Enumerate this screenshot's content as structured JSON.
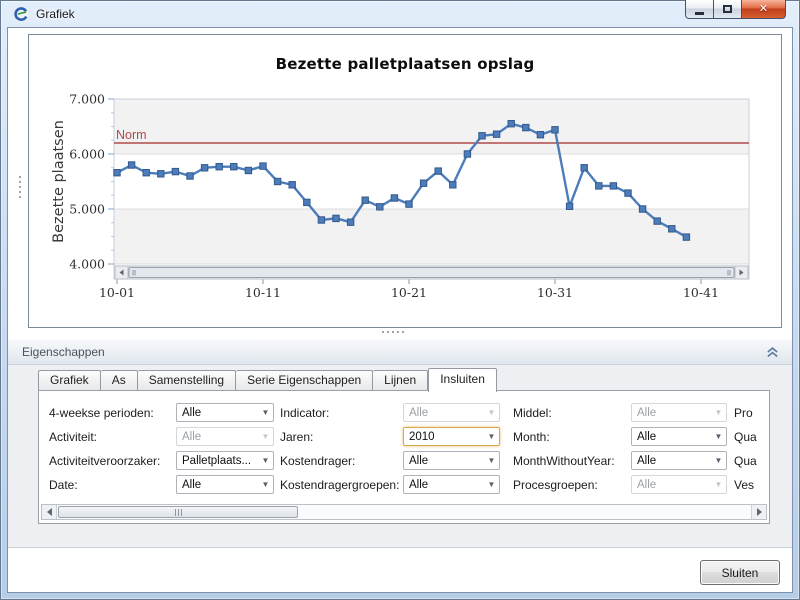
{
  "window": {
    "title": "Grafiek",
    "controls": {
      "minimize": "minimize",
      "maximize": "maximize",
      "close": "close"
    }
  },
  "colors": {
    "series_line": "#4c7cba",
    "series_marker": "#4c7cba",
    "series_marker_border": "#33598c",
    "norm_line": "#b04a4a",
    "gridline": "#dcdcdc",
    "band_fill": "#f2f2f2",
    "plot_border": "#c8d0da",
    "axis_tick": "#7aa6d0",
    "focus_border": "#d9a84d",
    "titlebar_close": "#c84a24"
  },
  "chart_data": {
    "type": "line",
    "title": "Bezette palletplaatsen opslag",
    "ylabel": "Bezette plaatsen",
    "xlabel": "",
    "ylim": [
      4000,
      7000
    ],
    "y_tick_labels": [
      "7.000",
      "6.000",
      "5.000",
      "4.000"
    ],
    "x_tick_labels": [
      "10-01",
      "10-11",
      "10-21",
      "10-31",
      "10-41"
    ],
    "x_tick_positions": [
      1,
      11,
      21,
      31,
      41
    ],
    "grid": "horizontal",
    "interlaced_bands": true,
    "scrollbar": true,
    "legend": "none",
    "norm_line": {
      "label": "Norm",
      "value": 6200
    },
    "series": [
      {
        "name": "Bezette palletplaatsen",
        "start_period": 1,
        "values": [
          5660,
          5800,
          5660,
          5640,
          5680,
          5600,
          5750,
          5770,
          5770,
          5700,
          5780,
          5500,
          5440,
          5120,
          4800,
          4830,
          4760,
          5160,
          5040,
          5200,
          5090,
          5470,
          5690,
          5440,
          6000,
          6330,
          6360,
          6550,
          6480,
          6350,
          6440,
          5050,
          5750,
          5420,
          5420,
          5290,
          5000,
          4780,
          4640,
          4490
        ]
      }
    ]
  },
  "properties": {
    "header": {
      "title": "Eigenschappen",
      "collapse_icon": "chevron-double-up"
    },
    "tabs": [
      {
        "label": "Grafiek",
        "active": false
      },
      {
        "label": "As",
        "active": false
      },
      {
        "label": "Samenstelling",
        "active": false
      },
      {
        "label": "Serie Eigenschappen",
        "active": false
      },
      {
        "label": "Lijnen",
        "active": false
      },
      {
        "label": "Insluiten",
        "active": true
      }
    ],
    "form": {
      "rows": [
        {
          "cells": [
            {
              "label": "4-weekse perioden:",
              "value": "Alle",
              "state": "normal"
            },
            {
              "label": "Indicator:",
              "value": "Alle",
              "state": "disabled"
            },
            {
              "label": "Middel:",
              "value": "Alle",
              "state": "disabled"
            },
            {
              "label": "Pro",
              "value": null,
              "state": "clipped"
            }
          ]
        },
        {
          "cells": [
            {
              "label": "Activiteit:",
              "value": "Alle",
              "state": "disabled"
            },
            {
              "label": "Jaren:",
              "value": "2010",
              "state": "focused"
            },
            {
              "label": "Month:",
              "value": "Alle",
              "state": "normal"
            },
            {
              "label": "Qua",
              "value": null,
              "state": "clipped"
            }
          ]
        },
        {
          "cells": [
            {
              "label": "Activiteitveroorzaker:",
              "value": "Palletplaats...",
              "state": "normal"
            },
            {
              "label": "Kostendrager:",
              "value": "Alle",
              "state": "normal"
            },
            {
              "label": "MonthWithoutYear:",
              "value": "Alle",
              "state": "normal"
            },
            {
              "label": "Qua",
              "value": null,
              "state": "clipped"
            }
          ]
        },
        {
          "cells": [
            {
              "label": "Date:",
              "value": "Alle",
              "state": "normal"
            },
            {
              "label": "Kostendragergroepen:",
              "value": "Alle",
              "state": "normal"
            },
            {
              "label": "Procesgroepen:",
              "value": "Alle",
              "state": "disabled"
            },
            {
              "label": "Ves",
              "value": null,
              "state": "clipped"
            }
          ]
        }
      ]
    }
  },
  "footer": {
    "close_button": "Sluiten"
  }
}
